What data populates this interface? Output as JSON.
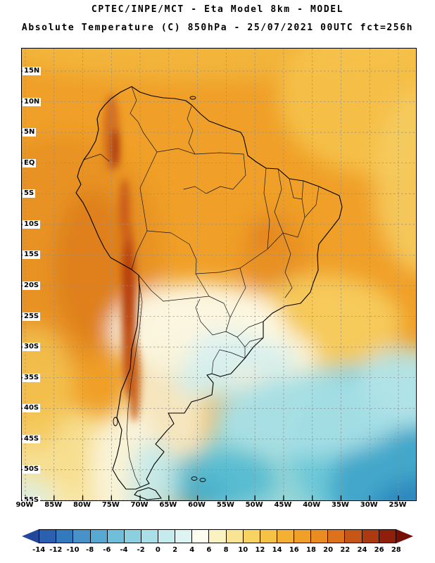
{
  "header": {
    "line1": "CPTEC/INPE/MCT -  Eta Model 8km - MODEL",
    "line2": "Absolute Temperature (C) 850hPa - 25/07/2021 00UTC fct=256h"
  },
  "map": {
    "lat_labels": [
      "15N",
      "10N",
      "5N",
      "EQ",
      "5S",
      "10S",
      "15S",
      "20S",
      "25S",
      "30S",
      "35S",
      "40S",
      "45S",
      "50S",
      "55S"
    ],
    "lon_labels": [
      "90W",
      "85W",
      "80W",
      "75W",
      "70W",
      "65W",
      "60W",
      "55W",
      "50W",
      "45W",
      "40W",
      "35W",
      "30W",
      "25W"
    ]
  },
  "colorbar": {
    "tick_labels": [
      "-14",
      "-12",
      "-10",
      "-8",
      "-6",
      "-4",
      "-2",
      "0",
      "2",
      "4",
      "6",
      "8",
      "10",
      "12",
      "14",
      "16",
      "18",
      "20",
      "22",
      "24",
      "26",
      "28"
    ],
    "cell_colors": [
      "#2B5FB0",
      "#3379BE",
      "#4792C8",
      "#58A9D2",
      "#6FBEDA",
      "#8CD0E0",
      "#AADFE8",
      "#C5EBEF",
      "#DEF4F3",
      "#FCFDEE",
      "#FBF2C2",
      "#F9E493",
      "#F7D462",
      "#F5C243",
      "#F3B032",
      "#F0A028",
      "#EA8C21",
      "#DC721B",
      "#C65615",
      "#AC3A10",
      "#8F1F0A"
    ],
    "arrow_left_color": "#23479A",
    "arrow_right_color": "#750E07"
  }
}
